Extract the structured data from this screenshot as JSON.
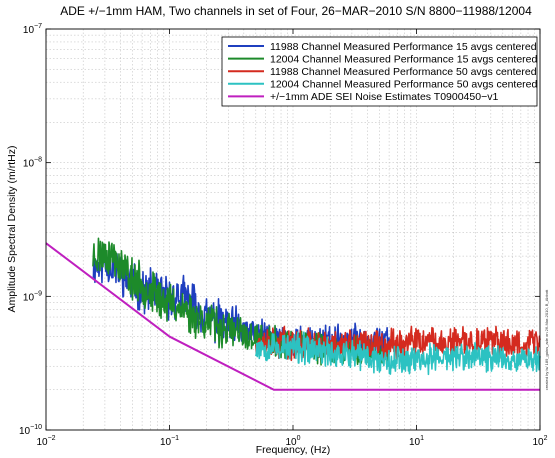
{
  "chart_data": {
    "type": "line",
    "title": "ADE +/−1mm HAM, Two channels in set of Four,   26−MAR−2010  S/N 8800−11988/12004",
    "xlabel": "Frequency, (Hz)",
    "ylabel": "Amplitude Spectral Density (m/rtHz)",
    "xscale": "log",
    "yscale": "log",
    "xlim": [
      0.01,
      100
    ],
    "ylim": [
      1e-10,
      1e-07
    ],
    "grid": true,
    "legend_position": "top-right",
    "x_ticks": [
      {
        "value": 0.01,
        "base": "10",
        "exp": "−2"
      },
      {
        "value": 0.1,
        "base": "10",
        "exp": "−1"
      },
      {
        "value": 1,
        "base": "10",
        "exp": "0"
      },
      {
        "value": 10,
        "base": "10",
        "exp": "1"
      },
      {
        "value": 100,
        "base": "10",
        "exp": "2"
      }
    ],
    "y_ticks": [
      {
        "value": 1e-10,
        "base": "10",
        "exp": "−10"
      },
      {
        "value": 1e-09,
        "base": "10",
        "exp": "−9"
      },
      {
        "value": 1e-08,
        "base": "10",
        "exp": "−8"
      },
      {
        "value": 1e-07,
        "base": "10",
        "exp": "−7"
      }
    ],
    "series": [
      {
        "name": "11988 Channel Measured Performance 15 avgs centered",
        "color": "#1f3fbf",
        "x_range": [
          0.024,
          6.0
        ],
        "noise_seed": 11,
        "x": [
          0.024,
          0.03,
          0.04,
          0.05,
          0.06,
          0.08,
          0.1,
          0.13,
          0.16,
          0.2,
          0.3,
          0.5,
          0.8,
          1,
          1.5,
          2,
          3,
          4,
          5,
          6
        ],
        "y": [
          1.7e-09,
          1.8e-09,
          1.5e-09,
          1.25e-09,
          1.1e-09,
          1.1e-09,
          9.5e-10,
          1e-09,
          8.5e-10,
          7e-10,
          6e-10,
          5.2e-10,
          4.8e-10,
          4.6e-10,
          4.6e-10,
          4.6e-10,
          4.7e-10,
          4.7e-10,
          4.6e-10,
          4.6e-10
        ]
      },
      {
        "name": "12004 Channel Measured Performance 15 avgs centered",
        "color": "#1d8a2a",
        "x_range": [
          0.024,
          6.0
        ],
        "noise_seed": 23,
        "x": [
          0.024,
          0.03,
          0.035,
          0.045,
          0.06,
          0.08,
          0.1,
          0.13,
          0.2,
          0.3,
          0.5,
          0.8,
          1,
          1.5,
          2,
          3,
          4,
          5,
          6
        ],
        "y": [
          2e-09,
          2.1e-09,
          2e-09,
          1.5e-09,
          1.2e-09,
          1e-09,
          9e-10,
          8e-10,
          6.5e-10,
          5.5e-10,
          4.8e-10,
          4.4e-10,
          4.2e-10,
          4.1e-10,
          4e-10,
          4e-10,
          3.9e-10,
          3.9e-10,
          3.8e-10
        ]
      },
      {
        "name": "11988 Channel Measured Performance 50 avgs centered",
        "color": "#d42a1f",
        "x_range": [
          0.5,
          100
        ],
        "noise_seed": 37,
        "x": [
          0.5,
          1,
          2,
          5,
          10,
          20,
          50,
          100
        ],
        "y": [
          4.7e-10,
          4.4e-10,
          4.3e-10,
          4.4e-10,
          4.5e-10,
          4.5e-10,
          4.5e-10,
          4.6e-10
        ]
      },
      {
        "name": "12004 Channel Measured Performance 50 avgs centered",
        "color": "#2cc2c2",
        "x_range": [
          0.5,
          100
        ],
        "noise_seed": 53,
        "x": [
          0.5,
          1,
          2,
          5,
          10,
          20,
          50,
          100
        ],
        "y": [
          4.3e-10,
          4.1e-10,
          3.8e-10,
          3.4e-10,
          3.4e-10,
          3.5e-10,
          3.5e-10,
          3.4e-10
        ]
      },
      {
        "name": "+/−1mm ADE SEI Noise Estimates T0900450−v1",
        "color": "#bf1fbf",
        "x_range": [
          0.01,
          100
        ],
        "noise_seed": 0,
        "x": [
          0.01,
          0.1,
          0.7,
          100
        ],
        "y": [
          2.5e-09,
          5e-10,
          2e-10,
          2e-10
        ]
      }
    ]
  },
  "side_note": "created by ls/ 189_gains_ade on 26-Mar-2010, B_Abbott"
}
